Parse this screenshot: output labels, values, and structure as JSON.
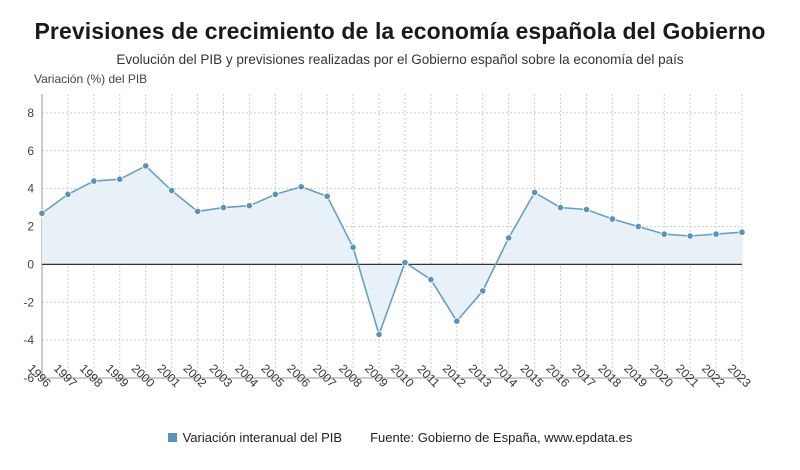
{
  "header": {
    "title": "Previsiones de crecimiento de la economía española del Gobierno",
    "subtitle": "Evolución del PIB y previsiones realizadas por el Gobierno español sobre la economía del país"
  },
  "legend": {
    "series_label": "Variación interanual del PIB",
    "source": "Fuente: Gobierno de España, www.epdata.es"
  },
  "colors": {
    "line": "#6a9fc0",
    "marker": "#5b92b8",
    "fill": "#e8f1f8",
    "zero_line": "#333333",
    "grid": "#cfcfcf"
  },
  "chart_data": {
    "type": "area",
    "title": "Previsiones de crecimiento de la economía española del Gobierno",
    "subtitle": "Evolución del PIB y previsiones realizadas por el Gobierno español sobre la economía del país",
    "ylabel": "Variación (%) del PIB",
    "xlabel": "",
    "ylim": [
      -6,
      9
    ],
    "yticks": [
      -6,
      -4,
      -2,
      0,
      2,
      4,
      6,
      8
    ],
    "grid": true,
    "legend_position": "bottom",
    "categories": [
      "1996",
      "1997",
      "1998",
      "1999",
      "2000",
      "2001",
      "2002",
      "2003",
      "2004",
      "2005",
      "2006",
      "2007",
      "2008",
      "2009",
      "2010",
      "2011",
      "2012",
      "2013",
      "2014",
      "2015",
      "2016",
      "2017",
      "2018",
      "2019",
      "2020",
      "2021",
      "2022",
      "2023"
    ],
    "series": [
      {
        "name": "Variación interanual del PIB",
        "values": [
          2.7,
          3.7,
          4.4,
          4.5,
          5.2,
          3.9,
          2.8,
          3.0,
          3.1,
          3.7,
          4.1,
          3.6,
          0.9,
          -3.7,
          0.1,
          -0.8,
          -3.0,
          -1.4,
          1.4,
          3.8,
          3.0,
          2.9,
          2.4,
          2.0,
          1.6,
          1.5,
          1.6,
          1.7
        ]
      }
    ]
  }
}
